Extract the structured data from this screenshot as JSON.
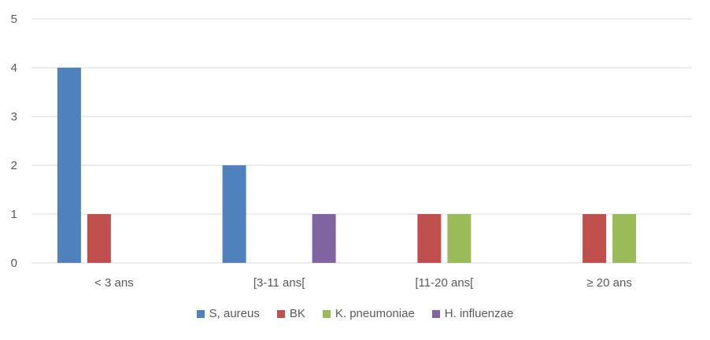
{
  "chart_data": {
    "type": "bar",
    "categories": [
      "< 3 ans",
      "[3-11 ans[",
      "[11-20 ans[",
      "≥ 20 ans"
    ],
    "series": [
      {
        "name": "S, aureus",
        "color": "#4F81BD",
        "values": [
          4,
          2,
          0,
          0
        ]
      },
      {
        "name": "BK",
        "color": "#C0504D",
        "values": [
          1,
          0,
          1,
          1
        ]
      },
      {
        "name": "K. pneumoniae",
        "color": "#9BBB59",
        "values": [
          0,
          0,
          1,
          1
        ]
      },
      {
        "name": "H. influenzae",
        "color": "#8064A2",
        "values": [
          0,
          1,
          0,
          0
        ]
      }
    ],
    "yticks": [
      "0",
      "1",
      "2",
      "3",
      "4",
      "5"
    ],
    "ylim": [
      0,
      5
    ],
    "grid": true,
    "legend_position": "bottom"
  }
}
